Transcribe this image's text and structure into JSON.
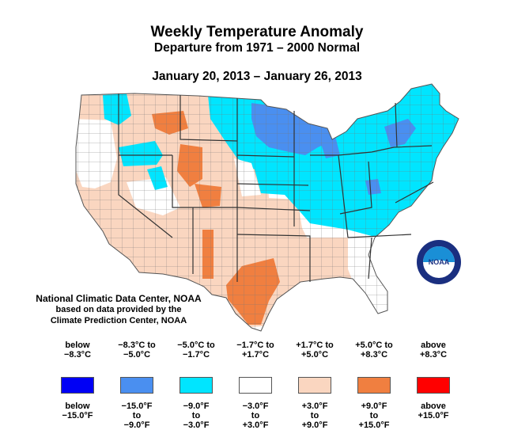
{
  "header": {
    "title": "Weekly Temperature Anomaly",
    "subtitle": "Departure from 1971 – 2000 Normal",
    "date_range": "January 20, 2013 – January 26, 2013"
  },
  "source": {
    "line1": "National Climatic Data Center, NOAA",
    "line2": "based on data provided by the",
    "line3": "Climate Prediction Center, NOAA"
  },
  "logo": {
    "text": "NOAA",
    "ring_text": "NATIONAL OCEANIC AND ATMOSPHERIC ADMINISTRATION · U.S. DEPARTMENT OF COMMERCE"
  },
  "legend": [
    {
      "celsius": "below\n−8.3°C",
      "fahrenheit": "below\n−15.0°F",
      "color": "#0000f5"
    },
    {
      "celsius": "−8.3°C to\n−5.0°C",
      "fahrenheit": "−15.0°F\nto\n−9.0°F",
      "color": "#4a8ff0"
    },
    {
      "celsius": "−5.0°C to\n−1.7°C",
      "fahrenheit": "−9.0°F\nto\n−3.0°F",
      "color": "#00e5ff"
    },
    {
      "celsius": "−1.7°C to\n+1.7°C",
      "fahrenheit": "−3.0°F\nto\n+3.0°F",
      "color": "#ffffff"
    },
    {
      "celsius": "+1.7°C to\n+5.0°C",
      "fahrenheit": "+3.0°F\nto\n+9.0°F",
      "color": "#fad6c0"
    },
    {
      "celsius": "+5.0°C to\n+8.3°C",
      "fahrenheit": "+9.0°F\nto\n+15.0°F",
      "color": "#f07f40"
    },
    {
      "celsius": "above\n+8.3°C",
      "fahrenheit": "above\n+15.0°F",
      "color": "#ff0000"
    }
  ],
  "colors": {
    "strong_cold": "#4a8ff0",
    "cold": "#00e5ff",
    "neutral": "#ffffff",
    "warm": "#fad6c0",
    "strong_warm": "#f07f40",
    "boundary": "#666666"
  }
}
